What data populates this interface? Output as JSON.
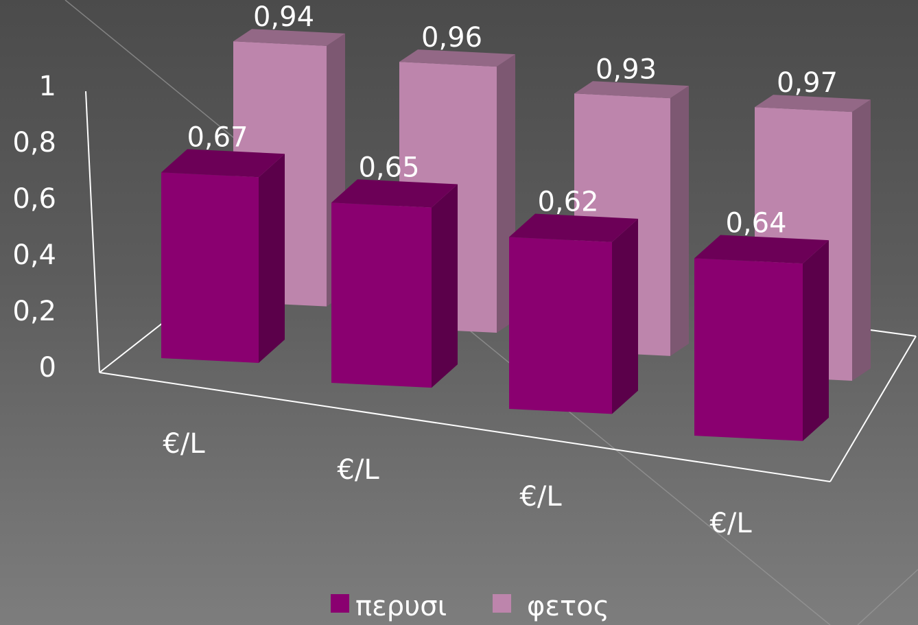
{
  "chart_data": {
    "type": "bar",
    "title": "",
    "xlabel": "",
    "ylabel": "",
    "categories": [
      "€/L",
      "€/L",
      "€/L",
      "€/L"
    ],
    "ylim": [
      0,
      1
    ],
    "yticks": [
      "0",
      "0,2",
      "0,4",
      "0,6",
      "0,8",
      "1"
    ],
    "grid": false,
    "legend_position": "bottom",
    "series": [
      {
        "name": "περυσι",
        "values": [
          0.67,
          0.65,
          0.62,
          0.64
        ],
        "labels": [
          "0,67",
          "0,65",
          "0,62",
          "0,64"
        ],
        "color": "#8a0070"
      },
      {
        "name": "φετος",
        "values": [
          0.94,
          0.96,
          0.93,
          0.97
        ],
        "labels": [
          "0,94",
          "0,96",
          "0,93",
          "0,97"
        ],
        "color": "#bd85ac"
      }
    ]
  }
}
